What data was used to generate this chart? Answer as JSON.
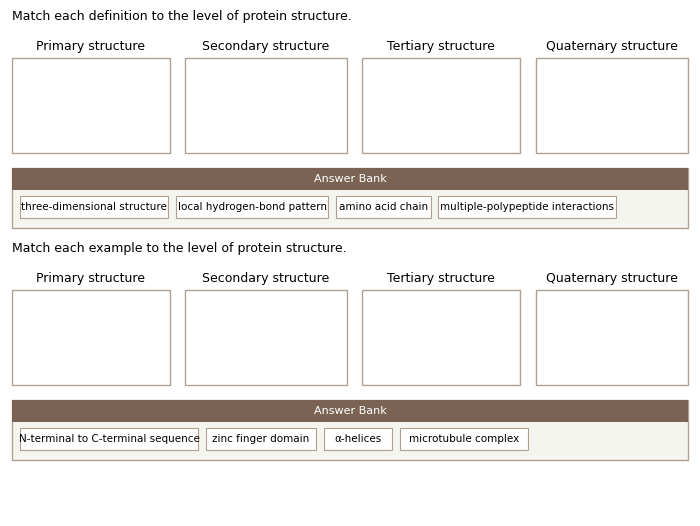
{
  "title1": "Match each definition to the level of protein structure.",
  "title2": "Match each example to the level of protein structure.",
  "columns": [
    "Primary structure",
    "Secondary structure",
    "Tertiary structure",
    "Quaternary structure"
  ],
  "answer_bank_label": "Answer Bank",
  "answers1": [
    "three-dimensional structure",
    "local hydrogen-bond pattern",
    "amino acid chain",
    "multiple-polypeptide interactions"
  ],
  "answers2": [
    "N-terminal to C-terminal sequence",
    "zinc finger domain",
    "α-helices",
    "microtubule complex"
  ],
  "bg_color": "#ffffff",
  "box_edge_color": "#b0a090",
  "answer_bank_bg": "#7a6352",
  "answer_bank_text": "#ffffff",
  "answer_area_bg": "#f5f5f0",
  "answer_area_edge": "#b0a090",
  "answer_item_bg": "#ffffff",
  "answer_item_edge": "#b0a090",
  "title_fontsize": 9.0,
  "col_fontsize": 9.0,
  "answer_fontsize": 7.5,
  "bank_label_fontsize": 8.0
}
